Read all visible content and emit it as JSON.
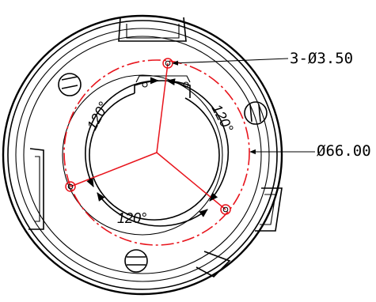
{
  "labels": {
    "hole_callout": "3-Ø3.50",
    "bolt_circle": "Ø66.00",
    "angle_top_left": "120°",
    "angle_top_right": "120°",
    "angle_bottom": "120°"
  }
}
